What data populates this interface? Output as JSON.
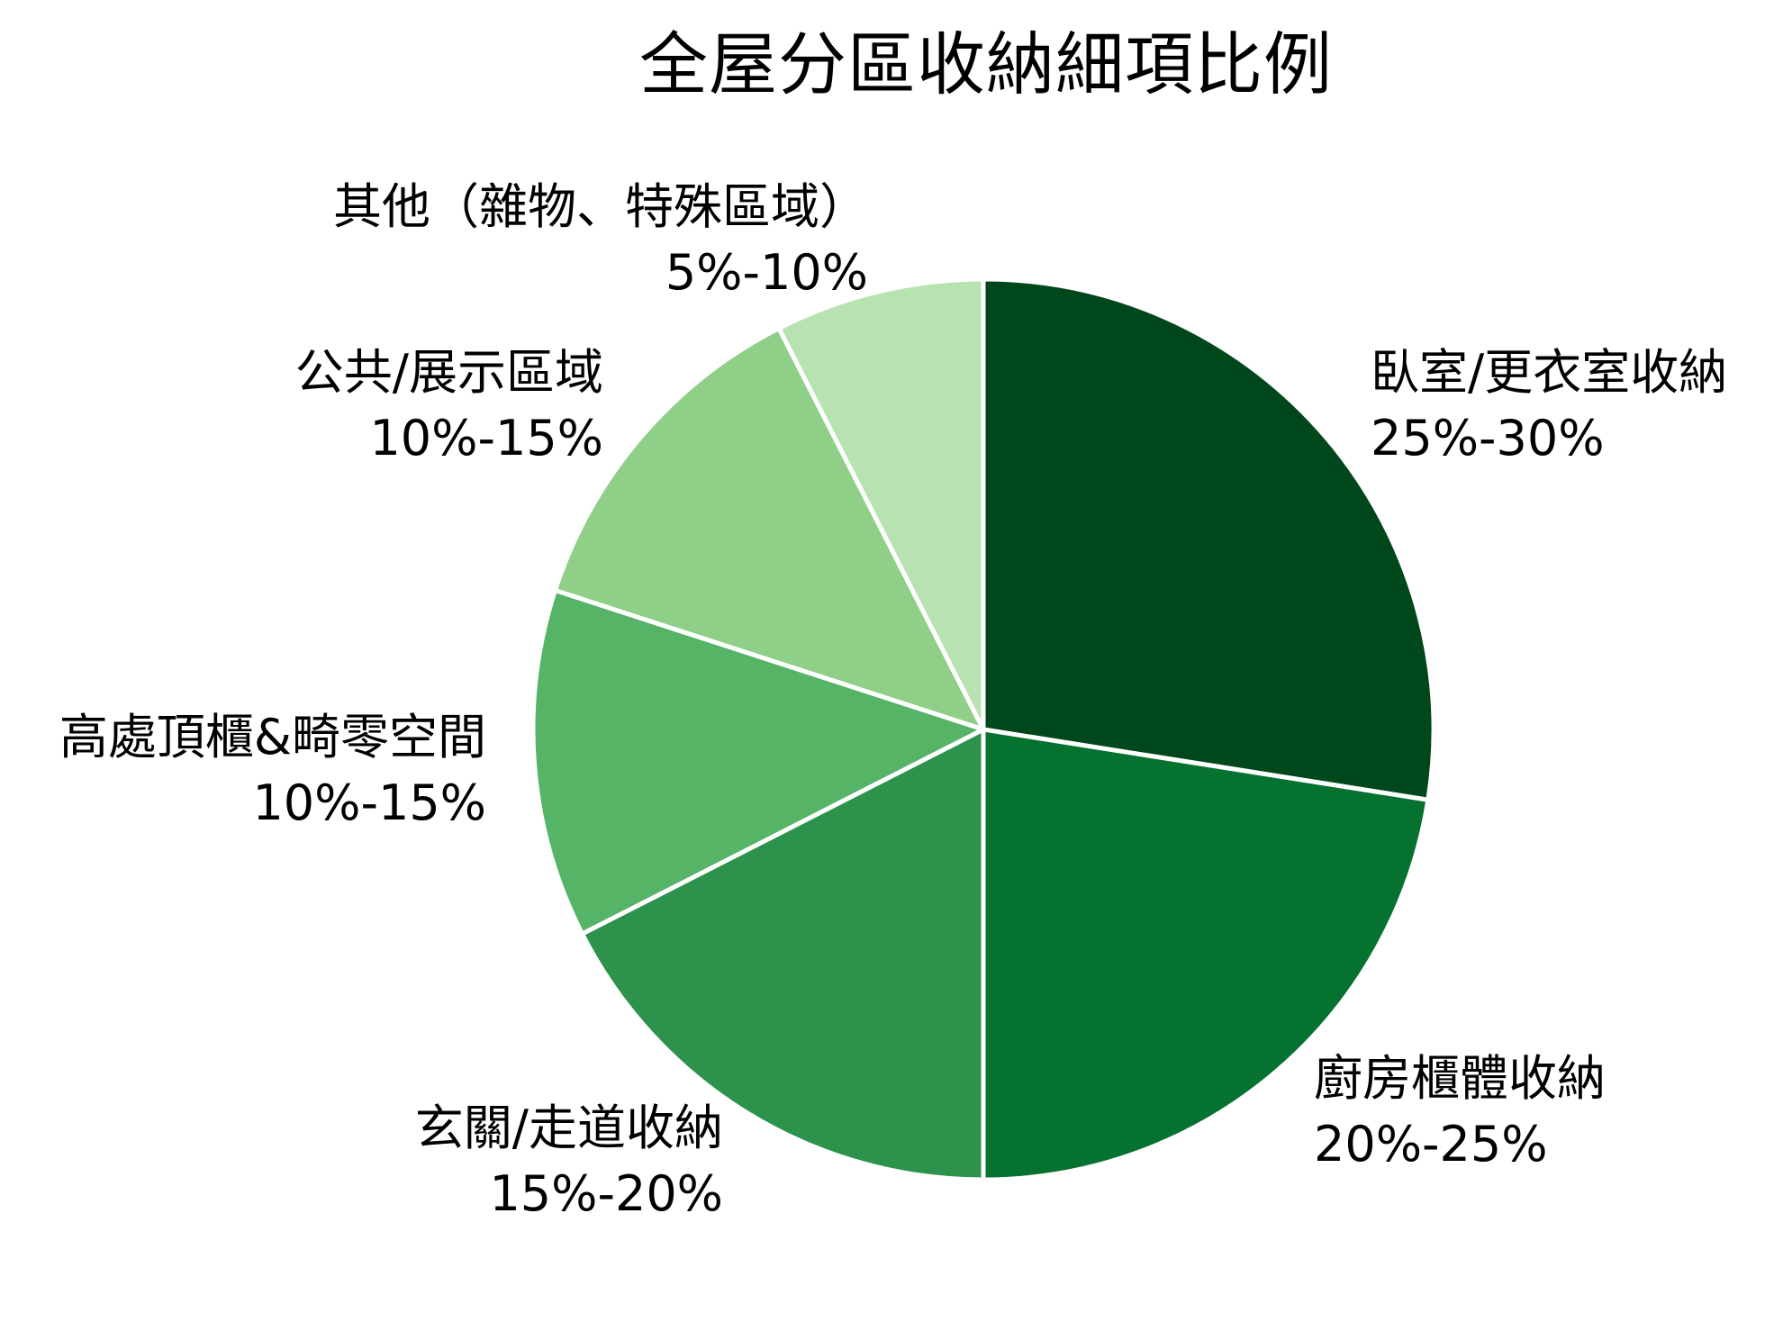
{
  "chart_data": {
    "type": "pie",
    "title": "全屋分區收納細項比例",
    "start_angle_deg": 0,
    "direction": "clockwise",
    "categories": [
      "臥室/更衣室收納",
      "廚房櫃體收納",
      "玄關/走道收納",
      "高處頂櫃&畸零空間",
      "公共/展示區域",
      "其他（雜物、特殊區域）"
    ],
    "range_labels": [
      "25%-30%",
      "20%-25%",
      "15%-20%",
      "10%-15%",
      "10%-15%",
      "5%-10%"
    ],
    "values": [
      27.5,
      22.5,
      17.5,
      12.5,
      12.5,
      7.5
    ],
    "colors": [
      "#00471b",
      "#067230",
      "#2d924b",
      "#56b467",
      "#8fcf87",
      "#b8e2b2"
    ],
    "legend": "none (direct labels outside slices)"
  },
  "title": "全屋分區收納細項比例",
  "labels": [
    {
      "name": "臥室/更衣室收納",
      "range": "25%-30%"
    },
    {
      "name": "廚房櫃體收納",
      "range": "20%-25%"
    },
    {
      "name": "玄關/走道收納",
      "range": "15%-20%"
    },
    {
      "name": "高處頂櫃&畸零空間",
      "range": "10%-15%"
    },
    {
      "name": "公共/展示區域",
      "range": "10%-15%"
    },
    {
      "name": "其他（雜物、特殊區域）",
      "range": "5%-10%"
    }
  ]
}
